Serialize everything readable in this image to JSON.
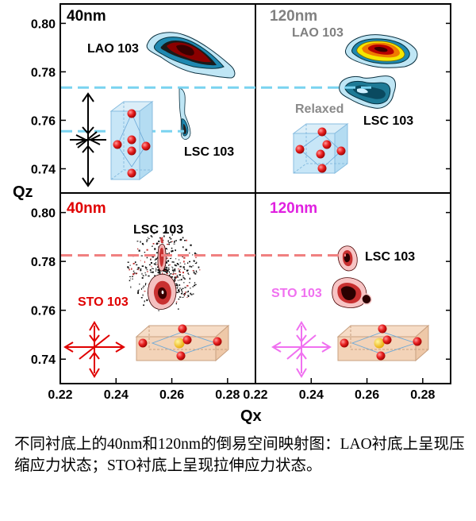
{
  "chart_data": [
    {
      "type": "scatter",
      "panel_title": "40nm",
      "ylabel": "Qz",
      "ylim": [
        0.73,
        0.808
      ],
      "yticks": [
        "0.80",
        "0.78",
        "0.76",
        "0.74"
      ],
      "ytick_values": [
        0.8,
        0.78,
        0.76,
        0.74
      ],
      "xlim": [
        0.22,
        0.29
      ],
      "peaks": [
        {
          "label": "LAO 103",
          "qx": 0.259,
          "qz": 0.7905
        },
        {
          "label": "LSC 103",
          "qx": 0.2655,
          "qz": 0.7555
        }
      ],
      "ref_line_qz": [
        0.7735,
        0.7555
      ]
    },
    {
      "type": "scatter",
      "panel_title": "120nm",
      "ylim": [
        0.73,
        0.808
      ],
      "xlim": [
        0.22,
        0.29
      ],
      "peaks": [
        {
          "label": "LAO 103",
          "qx": 0.261,
          "qz": 0.7905
        },
        {
          "label": "LSC 103",
          "qx": 0.2605,
          "qz": 0.7735
        }
      ],
      "annotation": "Relaxed",
      "ref_line_qz": [
        0.7735
      ]
    },
    {
      "type": "scatter",
      "panel_title": "40nm",
      "ylabel": "Qz",
      "ylim": [
        0.73,
        0.808
      ],
      "yticks": [
        "0.80",
        "0.78",
        "0.76",
        "0.74"
      ],
      "ytick_values": [
        0.8,
        0.78,
        0.76,
        0.74
      ],
      "xlim": [
        0.22,
        0.29
      ],
      "xlabel": "Qx",
      "xticks": [
        "0.22",
        "0.24",
        "0.26",
        "0.28"
      ],
      "xtick_values": [
        0.22,
        0.24,
        0.26,
        0.28
      ],
      "peaks": [
        {
          "label": "LSC 103",
          "qx": 0.2575,
          "qz": 0.7825
        },
        {
          "label": "STO 103",
          "qx": 0.2575,
          "qz": 0.764
        }
      ],
      "ref_line_qz": [
        0.7825
      ]
    },
    {
      "type": "scatter",
      "panel_title": "120nm",
      "ylim": [
        0.73,
        0.808
      ],
      "xlim": [
        0.22,
        0.29
      ],
      "xlabel": "Qx",
      "xticks": [
        "0.22",
        "0.24",
        "0.26",
        "0.28"
      ],
      "xtick_values": [
        0.22,
        0.24,
        0.26,
        0.28
      ],
      "peaks": [
        {
          "label": "LSC 103",
          "qx": 0.2525,
          "qz": 0.7825
        },
        {
          "label": "STO 103",
          "qx": 0.2525,
          "qz": 0.7645
        }
      ],
      "ref_line_qz": [
        0.7825
      ]
    }
  ],
  "colors": {
    "panel1_title": "#000000",
    "panel2_title": "#808080",
    "panel3_title": "#e00000",
    "panel4_title": "#e020e0",
    "ref_line_top": "#7ad3f0",
    "ref_line_bottom": "#f08080",
    "atom": "#e02020",
    "stress_top": "#000000",
    "stress_bottom_left": "#e00000",
    "stress_bottom_right": "#f070f0"
  },
  "caption": "不同衬底上的40nm和120nm的倒易空间映射图：LAO衬底上呈现压缩应力状态；STO衬底上呈现拉伸应力状态。"
}
